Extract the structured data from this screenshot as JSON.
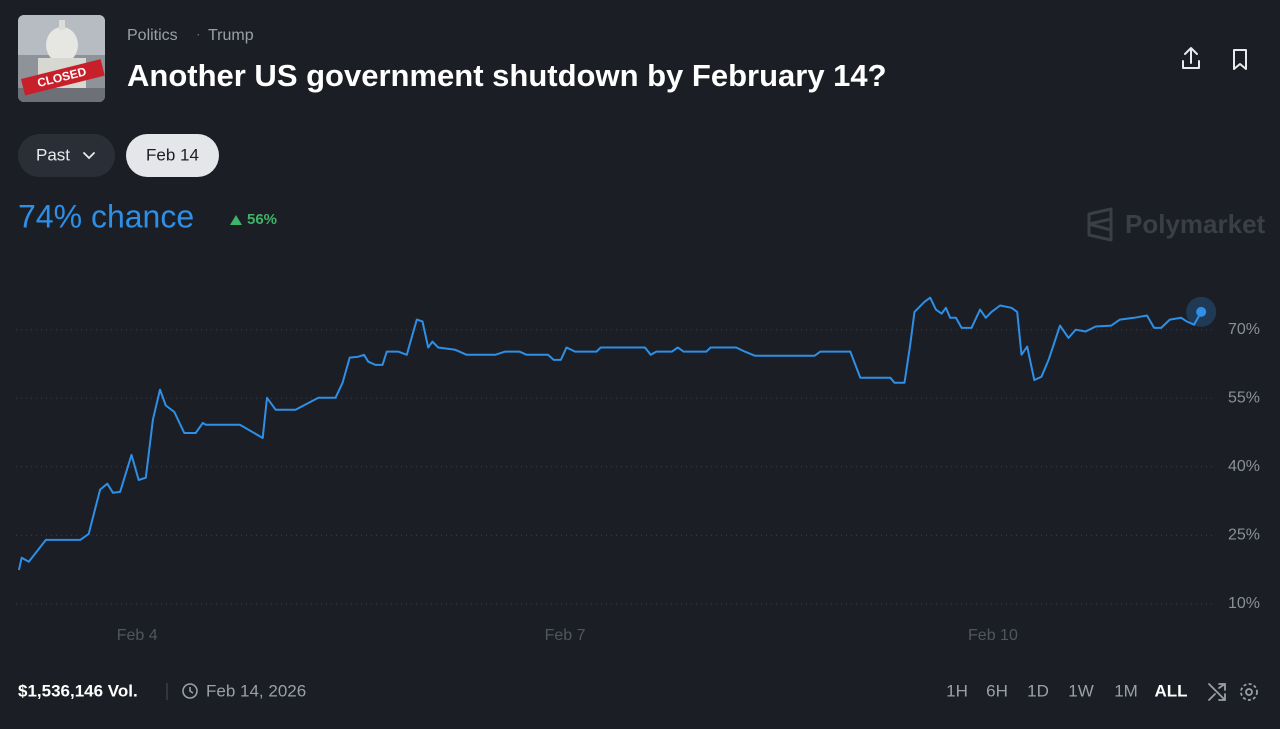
{
  "header": {
    "category": "Politics",
    "tag": "Trump",
    "title": "Another US government shutdown by February 14?"
  },
  "thumbnail_text": "CLOSED",
  "filters": {
    "past": "Past",
    "date": "Feb 14"
  },
  "summary": {
    "chance": "74% chance",
    "change": "56%"
  },
  "brand": "Polymarket",
  "chart_data": {
    "type": "line",
    "x": [
      3.17,
      3.19,
      3.24,
      3.36,
      3.6,
      3.66,
      3.74,
      3.79,
      3.83,
      3.88,
      3.96,
      4.01,
      4.06,
      4.11,
      4.16,
      4.2,
      4.26,
      4.33,
      4.41,
      4.46,
      4.48,
      4.72,
      4.88,
      4.91,
      4.97,
      5.11,
      5.27,
      5.39,
      5.44,
      5.49,
      5.55,
      5.59,
      5.62,
      5.67,
      5.72,
      5.75,
      5.83,
      5.89,
      5.91,
      5.96,
      6.0,
      6.04,
      6.07,
      6.11,
      6.23,
      6.31,
      6.51,
      6.58,
      6.68,
      6.73,
      6.88,
      6.92,
      6.97,
      7.01,
      7.07,
      7.22,
      7.25,
      7.56,
      7.6,
      7.64,
      7.75,
      7.79,
      7.83,
      7.99,
      8.02,
      8.2,
      8.26,
      8.33,
      8.75,
      8.79,
      9.0,
      9.07,
      9.28,
      9.31,
      9.38,
      9.42,
      9.45,
      9.52,
      9.56,
      9.6,
      9.64,
      9.67,
      9.7,
      9.74,
      9.78,
      9.85,
      9.91,
      9.95,
      9.99,
      10.05,
      10.13,
      10.17,
      10.2,
      10.24,
      10.29,
      10.34,
      10.39,
      10.47,
      10.53,
      10.58,
      10.65,
      10.72,
      10.83,
      10.89,
      10.99,
      11.08,
      11.13,
      11.18,
      11.24,
      11.32,
      11.36,
      11.41,
      11.46
    ],
    "series": [
      {
        "color": "#2e8fe6",
        "values": [
          17.4,
          20.1,
          19.2,
          24.0,
          24.0,
          25.3,
          35.0,
          36.3,
          34.3,
          34.5,
          42.6,
          37.1,
          37.6,
          50.3,
          56.9,
          53.4,
          52.0,
          47.4,
          47.4,
          49.6,
          49.2,
          49.2,
          46.3,
          55.1,
          52.5,
          52.5,
          55.1,
          55.1,
          58.4,
          63.9,
          64.1,
          64.5,
          63.0,
          62.3,
          62.3,
          65.2,
          65.2,
          64.5,
          66.7,
          72.2,
          71.8,
          66.1,
          67.4,
          66.1,
          65.6,
          64.5,
          64.5,
          65.2,
          65.2,
          64.5,
          64.5,
          63.4,
          63.4,
          66.1,
          65.2,
          65.2,
          66.1,
          66.1,
          64.5,
          65.2,
          65.2,
          66.1,
          65.2,
          65.2,
          66.1,
          66.1,
          65.2,
          64.3,
          64.3,
          65.2,
          65.2,
          59.5,
          59.5,
          58.4,
          58.4,
          66.7,
          73.9,
          76.1,
          77.0,
          74.4,
          73.5,
          74.8,
          72.6,
          72.6,
          70.4,
          70.4,
          74.4,
          72.6,
          73.9,
          75.3,
          74.8,
          73.9,
          64.5,
          66.3,
          59.0,
          59.7,
          63.4,
          70.9,
          68.2,
          70.0,
          69.6,
          70.7,
          70.9,
          72.2,
          72.6,
          73.1,
          70.4,
          70.4,
          72.2,
          72.6,
          71.8,
          71.1,
          73.9
        ]
      }
    ],
    "xlim": [
      3.15,
      11.55
    ],
    "ylim": [
      8,
      80
    ],
    "xticks": [
      {
        "value": 4,
        "label": "Feb 4"
      },
      {
        "value": 7,
        "label": "Feb 7"
      },
      {
        "value": 10,
        "label": "Feb 10"
      }
    ],
    "yticks": [
      {
        "value": 70,
        "label": "70%"
      },
      {
        "value": 55,
        "label": "55%"
      },
      {
        "value": 40,
        "label": "40%"
      },
      {
        "value": 25,
        "label": "25%"
      },
      {
        "value": 10,
        "label": "10%"
      }
    ],
    "grid": true
  },
  "footer": {
    "volume": "$1,536,146 Vol.",
    "end_date": "Feb 14, 2026",
    "ranges": [
      "1H",
      "6H",
      "1D",
      "1W",
      "1M",
      "ALL"
    ],
    "selected_range": 5
  }
}
